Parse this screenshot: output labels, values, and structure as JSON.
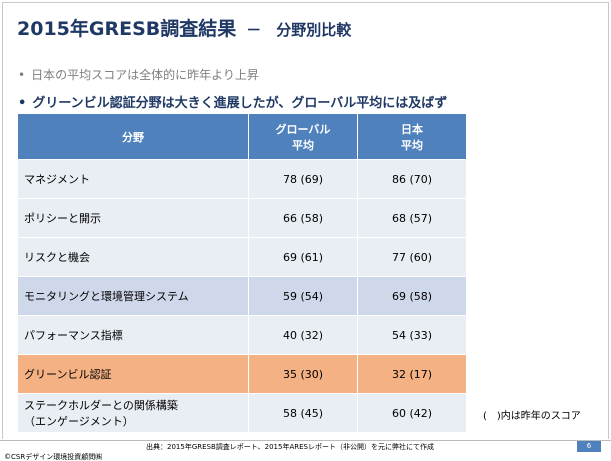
{
  "header": {
    "title": "2015年GRESB調査結果",
    "subtitle": "－　分野別比較"
  },
  "bullets": [
    "日本の平均スコアは全体的に昨年より上昇",
    "グリーンビル認証分野は大きく進展したが、グローバル平均には及ばず"
  ],
  "table": {
    "columns": [
      [
        "分野"
      ],
      [
        "グローバル",
        "平均"
      ],
      [
        "日本",
        "平均"
      ]
    ],
    "rows": [
      {
        "label": [
          "マネジメント"
        ],
        "global": "78 (69)",
        "japan": "86 (70)"
      },
      {
        "label": [
          "ポリシーと開示"
        ],
        "global": "66 (58)",
        "japan": "68 (57)"
      },
      {
        "label": [
          "リスクと機会"
        ],
        "global": "69 (61)",
        "japan": "77 (60)"
      },
      {
        "label": [
          "モニタリングと環境管理システム"
        ],
        "global": "59 (54)",
        "japan": "69 (58)"
      },
      {
        "label": [
          "パフォーマンス指標"
        ],
        "global": "40 (32)",
        "japan": "54 (33)"
      },
      {
        "label": [
          "グリーンビル認証"
        ],
        "global": "35 (30)",
        "japan": "32 (17)"
      },
      {
        "label": [
          "ステークホルダーとの関係構築",
          "（エンゲージメント）"
        ],
        "global": "58 (45)",
        "japan": "60 (42)"
      }
    ]
  },
  "note": "(　)内は昨年のスコア",
  "footer": {
    "source": "出典：2015年GRESB調査レポート、2015年ARESレポート（非公開）を元に弊社にて作成",
    "copyright": "©CSRデザイン環境投資顧問㈱",
    "page": "6"
  }
}
